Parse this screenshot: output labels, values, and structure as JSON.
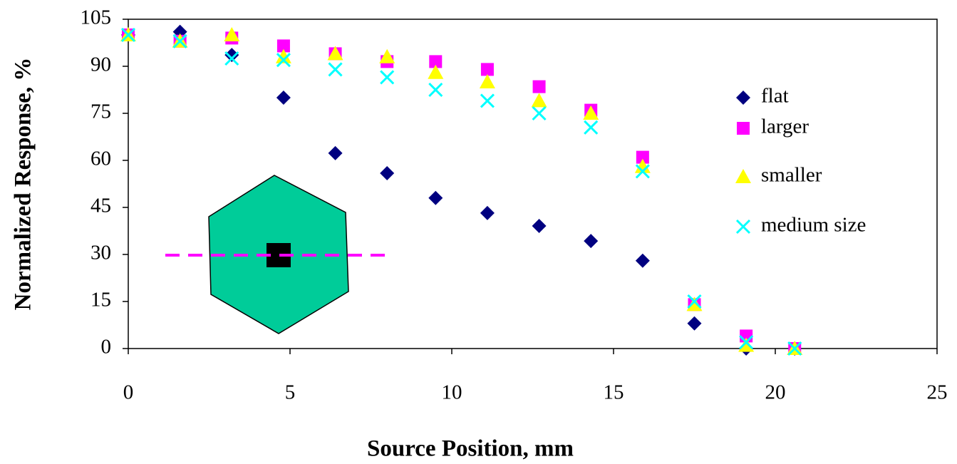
{
  "chart_data": {
    "type": "scatter",
    "xlabel": "Source Position, mm",
    "ylabel": "Normalized Response, %",
    "x": [
      0,
      1.6,
      3.2,
      4.8,
      6.4,
      8,
      9.5,
      11.1,
      12.7,
      14.3,
      15.9,
      17.5,
      19.1,
      20.6
    ],
    "series": [
      {
        "name": "flat",
        "color": "#000080",
        "marker": "diamond",
        "values": [
          100,
          101,
          93.6,
          80,
          62.3,
          55.9,
          48,
          43.2,
          39.1,
          34.3,
          28,
          8,
          0,
          0
        ]
      },
      {
        "name": "larger",
        "color": "#ff00ff",
        "marker": "square",
        "values": [
          100,
          98,
          99,
          96.5,
          94,
          91.5,
          91.5,
          89,
          83.5,
          76,
          61,
          14,
          4,
          0
        ]
      },
      {
        "name": "smaller",
        "color": "#ffff00",
        "marker": "triangle",
        "values": [
          100,
          98,
          100,
          93,
          94,
          93,
          88,
          85,
          79,
          75,
          58,
          14,
          1,
          0
        ]
      },
      {
        "name": "medium size",
        "color": "#00ffff",
        "marker": "x",
        "values": [
          100,
          98,
          92.5,
          92,
          89,
          86.5,
          82.5,
          79,
          75,
          70.5,
          56.5,
          15,
          2,
          0
        ]
      }
    ],
    "xlim": [
      0,
      25
    ],
    "xticks": [
      0,
      5,
      10,
      15,
      20,
      25
    ],
    "ylim": [
      0,
      105
    ],
    "yticks": [
      0,
      15,
      30,
      45,
      60,
      75,
      90,
      105
    ],
    "grid": false,
    "legend": "right"
  }
}
